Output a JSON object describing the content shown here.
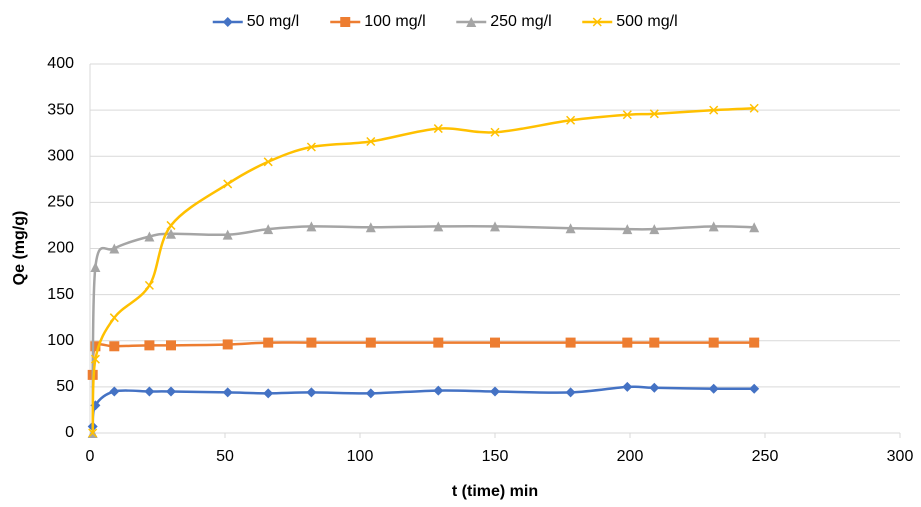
{
  "chart_data": {
    "type": "line",
    "x_label": "t (time) min",
    "y_label": "Qe (mg/g)",
    "x": [
      1,
      2,
      9,
      22,
      30,
      51,
      66,
      82,
      104,
      129,
      150,
      178,
      199,
      209,
      231,
      246
    ],
    "series": [
      {
        "name": "50 mg/l",
        "color": "#4472c4",
        "marker": "diamond",
        "values": [
          7,
          30,
          45,
          45,
          45,
          44,
          43,
          44,
          43,
          46,
          45,
          44,
          50,
          49,
          48,
          48
        ]
      },
      {
        "name": "100 mg/l",
        "color": "#ed7d31",
        "marker": "square",
        "values": [
          63,
          94,
          94,
          95,
          95,
          96,
          98,
          98,
          98,
          98,
          98,
          98,
          98,
          98,
          98,
          98
        ]
      },
      {
        "name": "250 mg/l",
        "color": "#a5a5a5",
        "marker": "triangle",
        "values": [
          0,
          180,
          200,
          213,
          216,
          215,
          221,
          224,
          223,
          224,
          224,
          222,
          221,
          221,
          224,
          223
        ]
      },
      {
        "name": "500 mg/l",
        "color": "#ffc000",
        "marker": "x",
        "values": [
          0,
          80,
          125,
          160,
          225,
          270,
          294,
          310,
          316,
          330,
          326,
          339,
          345,
          346,
          350,
          352
        ]
      }
    ],
    "xlim": [
      0,
      300
    ],
    "xticks": [
      0,
      50,
      100,
      150,
      200,
      250,
      300
    ],
    "ylim": [
      0,
      400
    ],
    "yticks": [
      0,
      50,
      100,
      150,
      200,
      250,
      300,
      350,
      400
    ],
    "grid": true,
    "smooth": true,
    "legend": "top"
  }
}
